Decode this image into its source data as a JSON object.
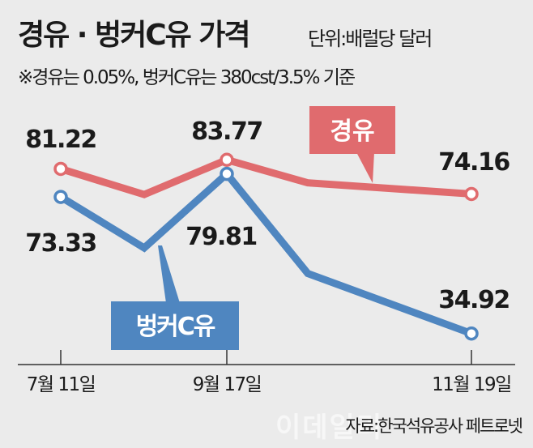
{
  "chart_data": {
    "type": "line",
    "title": "경유 · 벙커C유 가격",
    "unit": "단위:배럴당 달러",
    "note": "※경유는 0.05%, 벙커C유는 380cst/3.5% 기준",
    "source": "자료:한국석유공사 페트로넷",
    "watermark": "이데일리",
    "categories": [
      "7월 11일",
      "",
      "9월 17일",
      "",
      "11월 19일"
    ],
    "series": [
      {
        "name": "경유",
        "color": "#e06b6e",
        "values": [
          81.22,
          74,
          83.77,
          77.3,
          74.16
        ],
        "labels": [
          "81.22",
          "",
          "83.77",
          "",
          "74.16"
        ]
      },
      {
        "name": "벙커C유",
        "color": "#4f86c0",
        "values": [
          73.33,
          59,
          79.81,
          51.8,
          34.92
        ],
        "labels": [
          "73.33",
          "",
          "79.81",
          "",
          "34.92"
        ]
      }
    ],
    "grid": false,
    "legend": "inline callouts"
  }
}
